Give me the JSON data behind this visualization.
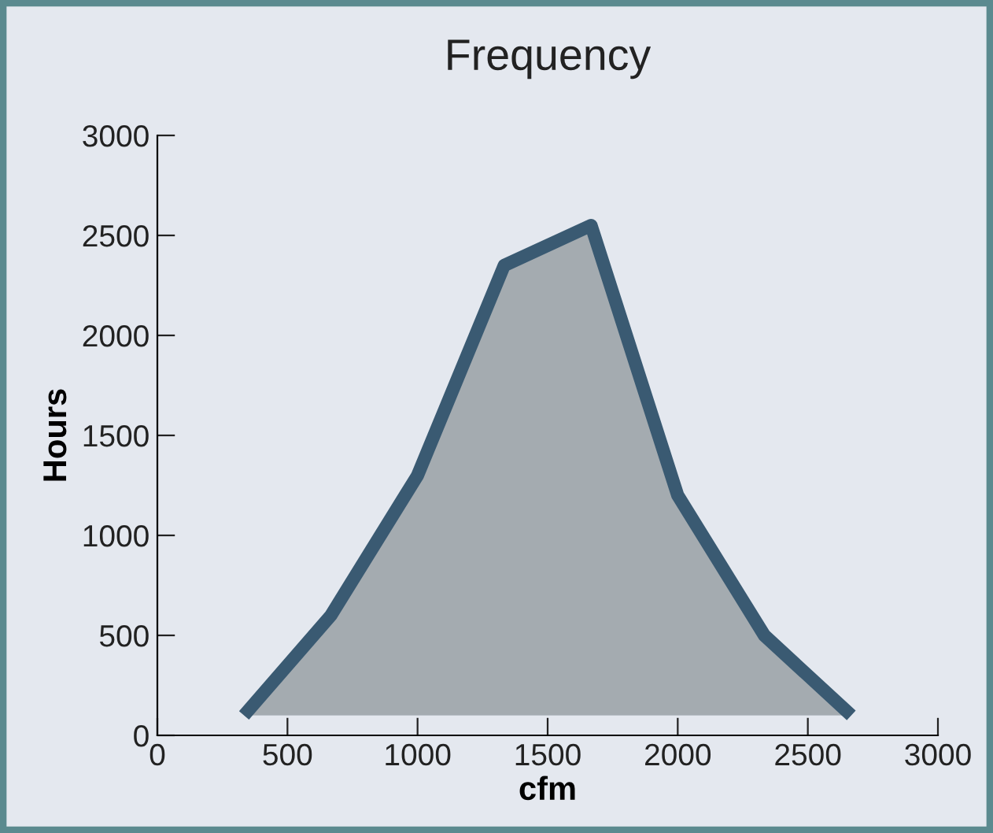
{
  "chart_data": {
    "type": "area",
    "title": "Frequency",
    "xlabel": "cfm",
    "ylabel": "Hours",
    "x": [
      333,
      667,
      1000,
      1333,
      1667,
      2000,
      2333,
      2667
    ],
    "series": [
      {
        "color": "#3a5a72",
        "values": [
          100,
          600,
          1300,
          2350,
          2550,
          1200,
          500,
          100
        ]
      }
    ],
    "xlim": [
      0,
      3000
    ],
    "ylim": [
      0,
      3000
    ],
    "xticks": [
      0,
      500,
      1000,
      1500,
      2000,
      2500,
      3000
    ],
    "yticks": [
      0,
      500,
      1000,
      1500,
      2000,
      2500,
      3000
    ],
    "grid": false,
    "legend": false
  }
}
